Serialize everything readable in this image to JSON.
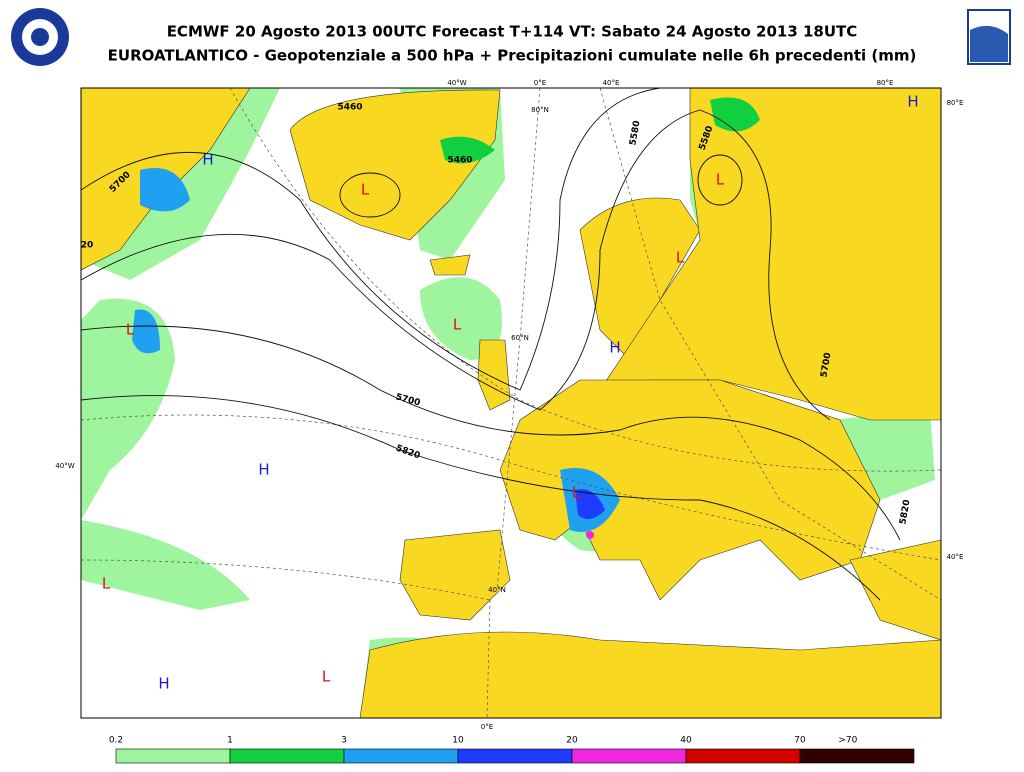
{
  "header": {
    "title": "ECMWF 20 Agosto 2013 00UTC Forecast T+114 VT: Sabato 24 Agosto 2013 18UTC",
    "subtitle": "EUROATLANTICO - Geopotenziale a 500 hPa + Precipitazioni cumulate nelle 6h precedenti (mm)"
  },
  "map": {
    "graticule_labels": [
      "40°W",
      "0°E",
      "40°E",
      "80°E",
      "80°E",
      "40°E",
      "40°W",
      "80°N",
      "60°N",
      "40°N",
      "0°E"
    ],
    "contour_labels": [
      "5460",
      "5460",
      "5700",
      "5700",
      "5820",
      "5580",
      "5580",
      "5700",
      "5820",
      "20"
    ],
    "pressure_centers": [
      {
        "label": "H",
        "color": "#1a1ad0"
      },
      {
        "label": "L",
        "color": "#e01010"
      },
      {
        "label": "L",
        "color": "#e01010"
      },
      {
        "label": "H",
        "color": "#1a1ad0"
      },
      {
        "label": "L",
        "color": "#e01010"
      },
      {
        "label": "L",
        "color": "#e01010"
      },
      {
        "label": "H",
        "color": "#1a1ad0"
      },
      {
        "label": "L",
        "color": "#e01010"
      },
      {
        "label": "H",
        "color": "#1a1ad0"
      },
      {
        "label": "L",
        "color": "#e01010"
      },
      {
        "label": "L",
        "color": "#e01010"
      },
      {
        "label": "H",
        "color": "#1a1ad0"
      },
      {
        "label": "L",
        "color": "#e01010"
      }
    ]
  },
  "legend": {
    "labels": [
      "0.2",
      "1",
      "3",
      "10",
      "20",
      "40",
      "70",
      ">70"
    ],
    "colors": [
      "#9ef59e",
      "#10d040",
      "#20a0f0",
      "#1e3cff",
      "#f028e0",
      "#d20000",
      "#320000"
    ]
  }
}
